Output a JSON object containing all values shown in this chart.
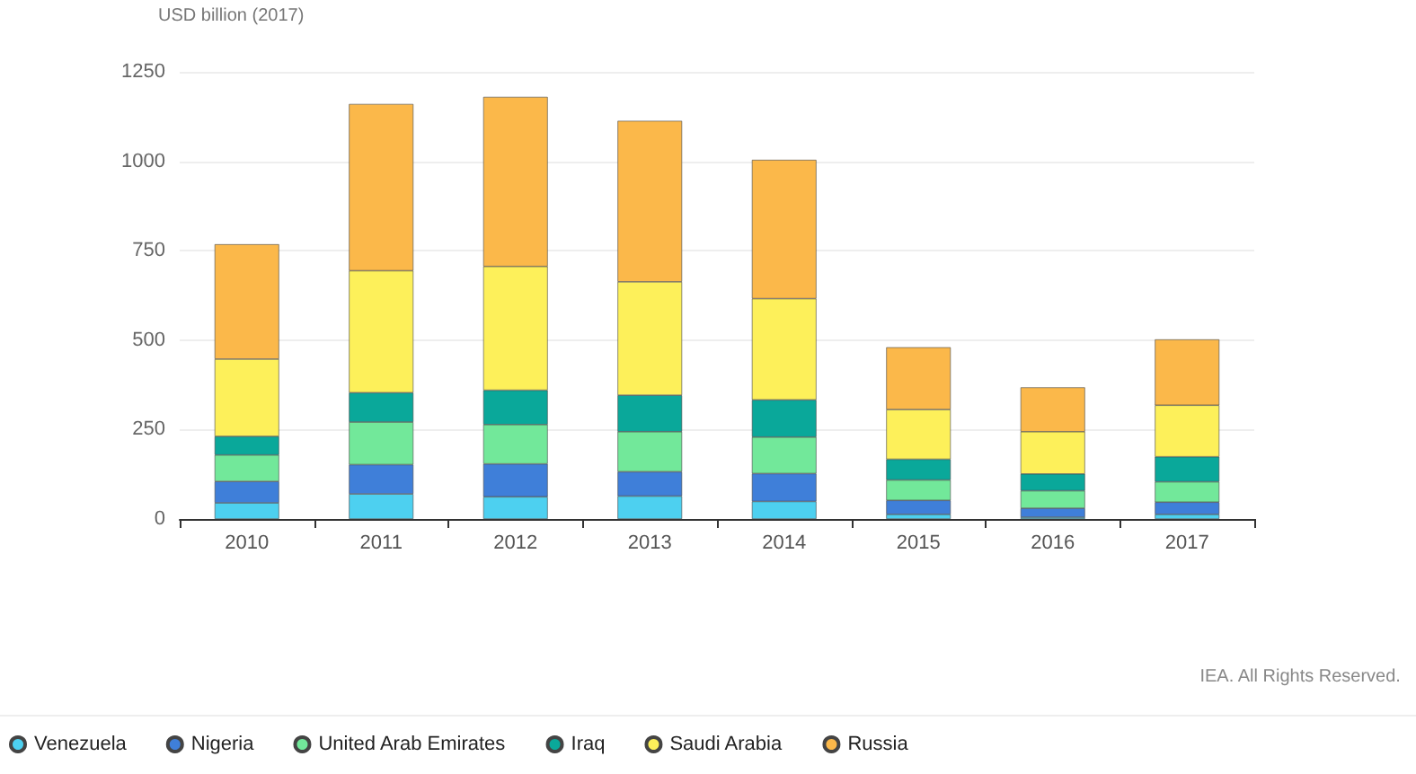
{
  "chart_data": {
    "type": "bar",
    "stacked": true,
    "ylabel": "USD billion (2017)",
    "categories": [
      "2010",
      "2011",
      "2012",
      "2013",
      "2014",
      "2015",
      "2016",
      "2017"
    ],
    "series": [
      {
        "name": "Venezuela",
        "color": "#4dd0f0",
        "values": [
          45,
          70,
          62,
          64,
          49,
          13,
          5,
          13
        ]
      },
      {
        "name": "Nigeria",
        "color": "#3f7fd9",
        "values": [
          60,
          82,
          92,
          68,
          78,
          39,
          25,
          34
        ]
      },
      {
        "name": "United Arab Emirates",
        "color": "#72e89a",
        "values": [
          74,
          119,
          110,
          112,
          102,
          57,
          49,
          57
        ]
      },
      {
        "name": "Iraq",
        "color": "#0aa89a",
        "values": [
          52,
          82,
          96,
          102,
          104,
          58,
          47,
          70
        ]
      },
      {
        "name": "Saudi Arabia",
        "color": "#fdf05a",
        "values": [
          216,
          341,
          346,
          317,
          283,
          139,
          118,
          144
        ]
      },
      {
        "name": "Russia",
        "color": "#fbb84a",
        "values": [
          321,
          466,
          474,
          450,
          388,
          174,
          124,
          184
        ]
      }
    ],
    "ylim": [
      0,
      1250
    ],
    "yticks": [
      0,
      250,
      500,
      750,
      1000,
      1250
    ],
    "grid": "y",
    "legend": "bottom",
    "annotations": [
      "IEA. All Rights Reserved."
    ]
  }
}
